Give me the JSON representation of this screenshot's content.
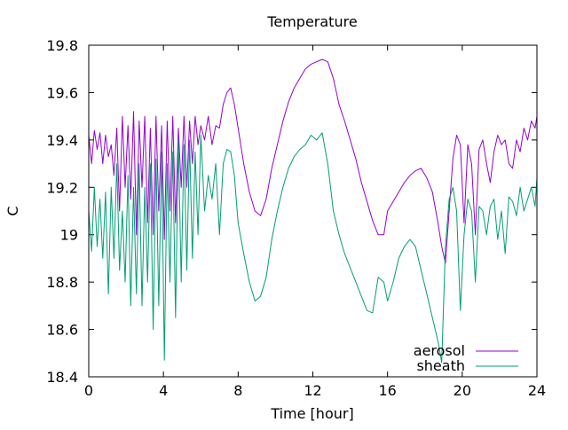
{
  "chart_data": {
    "type": "line",
    "title": "Temperature",
    "xlabel": "Time [hour]",
    "ylabel": "C",
    "xlim": [
      0,
      24
    ],
    "ylim": [
      18.4,
      19.8
    ],
    "x_ticks": [
      0,
      4,
      8,
      12,
      16,
      20,
      24
    ],
    "x_tick_labels": [
      "0",
      "4",
      "8",
      "12",
      "16",
      "20",
      "24"
    ],
    "y_ticks": [
      18.4,
      18.6,
      18.8,
      19.0,
      19.2,
      19.4,
      19.6,
      19.8
    ],
    "y_tick_labels": [
      "18.4",
      "18.6",
      "18.8",
      "19",
      "19.2",
      "19.4",
      "19.6",
      "19.8"
    ],
    "grid": false,
    "legend_position": "bottom-right",
    "series": [
      {
        "name": "aerosol",
        "color": "#9400d3",
        "x": [
          0.0,
          0.15,
          0.3,
          0.45,
          0.6,
          0.75,
          0.9,
          1.05,
          1.2,
          1.35,
          1.5,
          1.65,
          1.8,
          1.95,
          2.1,
          2.25,
          2.4,
          2.55,
          2.7,
          2.85,
          3.0,
          3.15,
          3.3,
          3.45,
          3.6,
          3.75,
          3.9,
          4.05,
          4.2,
          4.35,
          4.5,
          4.65,
          4.8,
          4.95,
          5.1,
          5.25,
          5.4,
          5.55,
          5.7,
          5.85,
          6.0,
          6.2,
          6.4,
          6.6,
          6.8,
          7.0,
          7.2,
          7.4,
          7.6,
          7.8,
          8.0,
          8.3,
          8.6,
          8.9,
          9.2,
          9.5,
          9.8,
          10.1,
          10.4,
          10.7,
          11.0,
          11.3,
          11.6,
          11.9,
          12.2,
          12.5,
          12.8,
          13.1,
          13.4,
          13.7,
          14.0,
          14.3,
          14.6,
          14.9,
          15.2,
          15.5,
          15.8,
          16.0,
          16.3,
          16.6,
          16.9,
          17.2,
          17.5,
          17.8,
          18.1,
          18.4,
          18.7,
          18.9,
          19.1,
          19.3,
          19.5,
          19.7,
          19.9,
          20.1,
          20.3,
          20.5,
          20.7,
          20.9,
          21.1,
          21.3,
          21.5,
          21.7,
          21.9,
          22.1,
          22.3,
          22.5,
          22.7,
          22.9,
          23.1,
          23.3,
          23.5,
          23.7,
          23.9,
          24.0
        ],
        "y": [
          19.42,
          19.3,
          19.44,
          19.36,
          19.43,
          19.3,
          19.42,
          19.33,
          19.38,
          19.25,
          19.45,
          19.1,
          19.5,
          19.2,
          19.46,
          19.15,
          19.52,
          19.0,
          19.48,
          19.2,
          19.5,
          19.05,
          19.45,
          19.0,
          19.5,
          19.1,
          19.46,
          18.98,
          19.48,
          19.1,
          19.5,
          19.05,
          19.45,
          19.2,
          19.5,
          19.2,
          19.48,
          19.3,
          19.5,
          19.38,
          19.46,
          19.4,
          19.5,
          19.38,
          19.46,
          19.45,
          19.55,
          19.6,
          19.62,
          19.55,
          19.45,
          19.3,
          19.18,
          19.1,
          19.08,
          19.15,
          19.28,
          19.38,
          19.48,
          19.56,
          19.62,
          19.66,
          19.7,
          19.72,
          19.73,
          19.74,
          19.73,
          19.66,
          19.55,
          19.48,
          19.4,
          19.32,
          19.22,
          19.14,
          19.06,
          19.0,
          19.0,
          19.1,
          19.14,
          19.18,
          19.22,
          19.25,
          19.27,
          19.28,
          19.24,
          19.18,
          19.05,
          18.95,
          18.88,
          19.1,
          19.32,
          19.42,
          19.38,
          19.05,
          19.38,
          19.3,
          19.0,
          19.36,
          19.4,
          19.3,
          19.22,
          19.35,
          19.42,
          19.38,
          19.4,
          19.3,
          19.28,
          19.4,
          19.35,
          19.45,
          19.4,
          19.48,
          19.45,
          19.5
        ]
      },
      {
        "name": "sheath",
        "color": "#009e73",
        "x": [
          0.0,
          0.15,
          0.3,
          0.45,
          0.6,
          0.75,
          0.9,
          1.05,
          1.2,
          1.35,
          1.5,
          1.65,
          1.8,
          1.95,
          2.1,
          2.25,
          2.4,
          2.55,
          2.7,
          2.85,
          3.0,
          3.15,
          3.3,
          3.45,
          3.6,
          3.75,
          3.9,
          4.05,
          4.2,
          4.35,
          4.5,
          4.65,
          4.8,
          4.95,
          5.1,
          5.25,
          5.4,
          5.55,
          5.7,
          5.85,
          6.0,
          6.2,
          6.4,
          6.6,
          6.8,
          7.0,
          7.2,
          7.4,
          7.6,
          7.8,
          8.0,
          8.3,
          8.6,
          8.9,
          9.2,
          9.5,
          9.8,
          10.1,
          10.4,
          10.7,
          11.0,
          11.3,
          11.6,
          11.9,
          12.2,
          12.5,
          12.8,
          13.1,
          13.4,
          13.7,
          14.0,
          14.3,
          14.6,
          14.9,
          15.2,
          15.5,
          15.8,
          16.0,
          16.3,
          16.6,
          16.9,
          17.2,
          17.5,
          17.8,
          18.1,
          18.4,
          18.7,
          18.9,
          19.1,
          19.3,
          19.5,
          19.7,
          19.9,
          20.1,
          20.3,
          20.5,
          20.7,
          20.9,
          21.1,
          21.3,
          21.5,
          21.7,
          21.9,
          22.1,
          22.3,
          22.5,
          22.7,
          22.9,
          23.1,
          23.3,
          23.5,
          23.7,
          23.9,
          24.0
        ],
        "y": [
          19.1,
          18.93,
          19.2,
          18.95,
          19.15,
          18.9,
          19.18,
          18.75,
          19.2,
          18.9,
          19.3,
          18.85,
          19.1,
          18.8,
          19.25,
          18.7,
          19.2,
          18.75,
          19.3,
          18.7,
          19.2,
          18.8,
          19.3,
          18.6,
          19.32,
          18.7,
          19.35,
          18.47,
          19.3,
          18.8,
          19.35,
          18.65,
          19.4,
          18.8,
          19.38,
          18.85,
          19.4,
          18.9,
          19.35,
          19.0,
          19.42,
          19.1,
          19.25,
          19.15,
          19.3,
          19.0,
          19.3,
          19.36,
          19.35,
          19.25,
          19.05,
          18.92,
          18.8,
          18.72,
          18.74,
          18.82,
          18.98,
          19.1,
          19.2,
          19.28,
          19.33,
          19.36,
          19.38,
          19.42,
          19.4,
          19.43,
          19.3,
          19.1,
          19.0,
          18.92,
          18.86,
          18.8,
          18.74,
          18.68,
          18.67,
          18.82,
          18.8,
          18.72,
          18.8,
          18.9,
          18.95,
          18.98,
          18.95,
          18.85,
          18.75,
          18.65,
          18.55,
          18.46,
          18.95,
          19.15,
          19.2,
          19.1,
          18.68,
          19.0,
          19.15,
          19.1,
          18.8,
          19.12,
          19.1,
          19.0,
          19.12,
          19.15,
          18.98,
          19.1,
          18.92,
          19.16,
          19.14,
          19.08,
          19.2,
          19.1,
          19.15,
          19.2,
          19.12,
          19.24
        ]
      }
    ]
  }
}
